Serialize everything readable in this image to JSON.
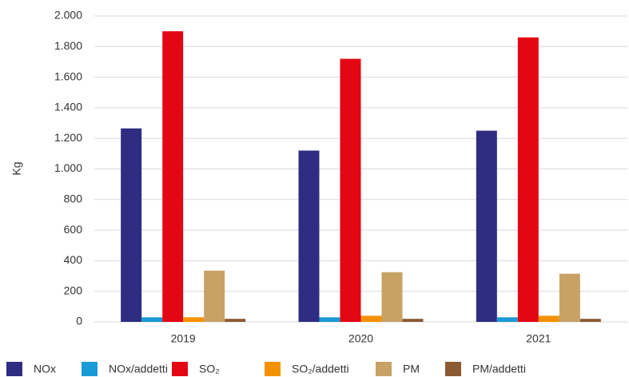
{
  "chart_data": {
    "type": "bar",
    "y_label": "Kg",
    "categories": [
      "2019",
      "2020",
      "2021"
    ],
    "series": [
      {
        "name": "NOx",
        "color": "#2e2d82",
        "values": [
          1265,
          1120,
          1250
        ]
      },
      {
        "name": "NOx/addetti",
        "color": "#1a9ad6",
        "values": [
          30,
          30,
          30
        ]
      },
      {
        "name": "SO₂",
        "color": "#e30613",
        "values": [
          1900,
          1720,
          1860
        ]
      },
      {
        "name": "SO₂/addetti",
        "color": "#f39200",
        "values": [
          30,
          40,
          40
        ]
      },
      {
        "name": "PM",
        "color": "#c8a165",
        "values": [
          335,
          325,
          315
        ]
      },
      {
        "name": "PM/addetti",
        "color": "#8a5a35",
        "values": [
          20,
          20,
          20
        ]
      }
    ],
    "ylim": [
      0,
      2000
    ],
    "yticks": [
      0,
      200,
      400,
      600,
      800,
      {
        "value": 1000,
        "label": "1.000"
      },
      {
        "value": 1200,
        "label": "1.200"
      },
      {
        "value": 1400,
        "label": "1.400"
      },
      {
        "value": 1600,
        "label": "1.600"
      },
      {
        "value": 1800,
        "label": "1.800"
      },
      {
        "value": 2000,
        "label": "2.000"
      }
    ],
    "grid": true,
    "legend": "bottom"
  }
}
